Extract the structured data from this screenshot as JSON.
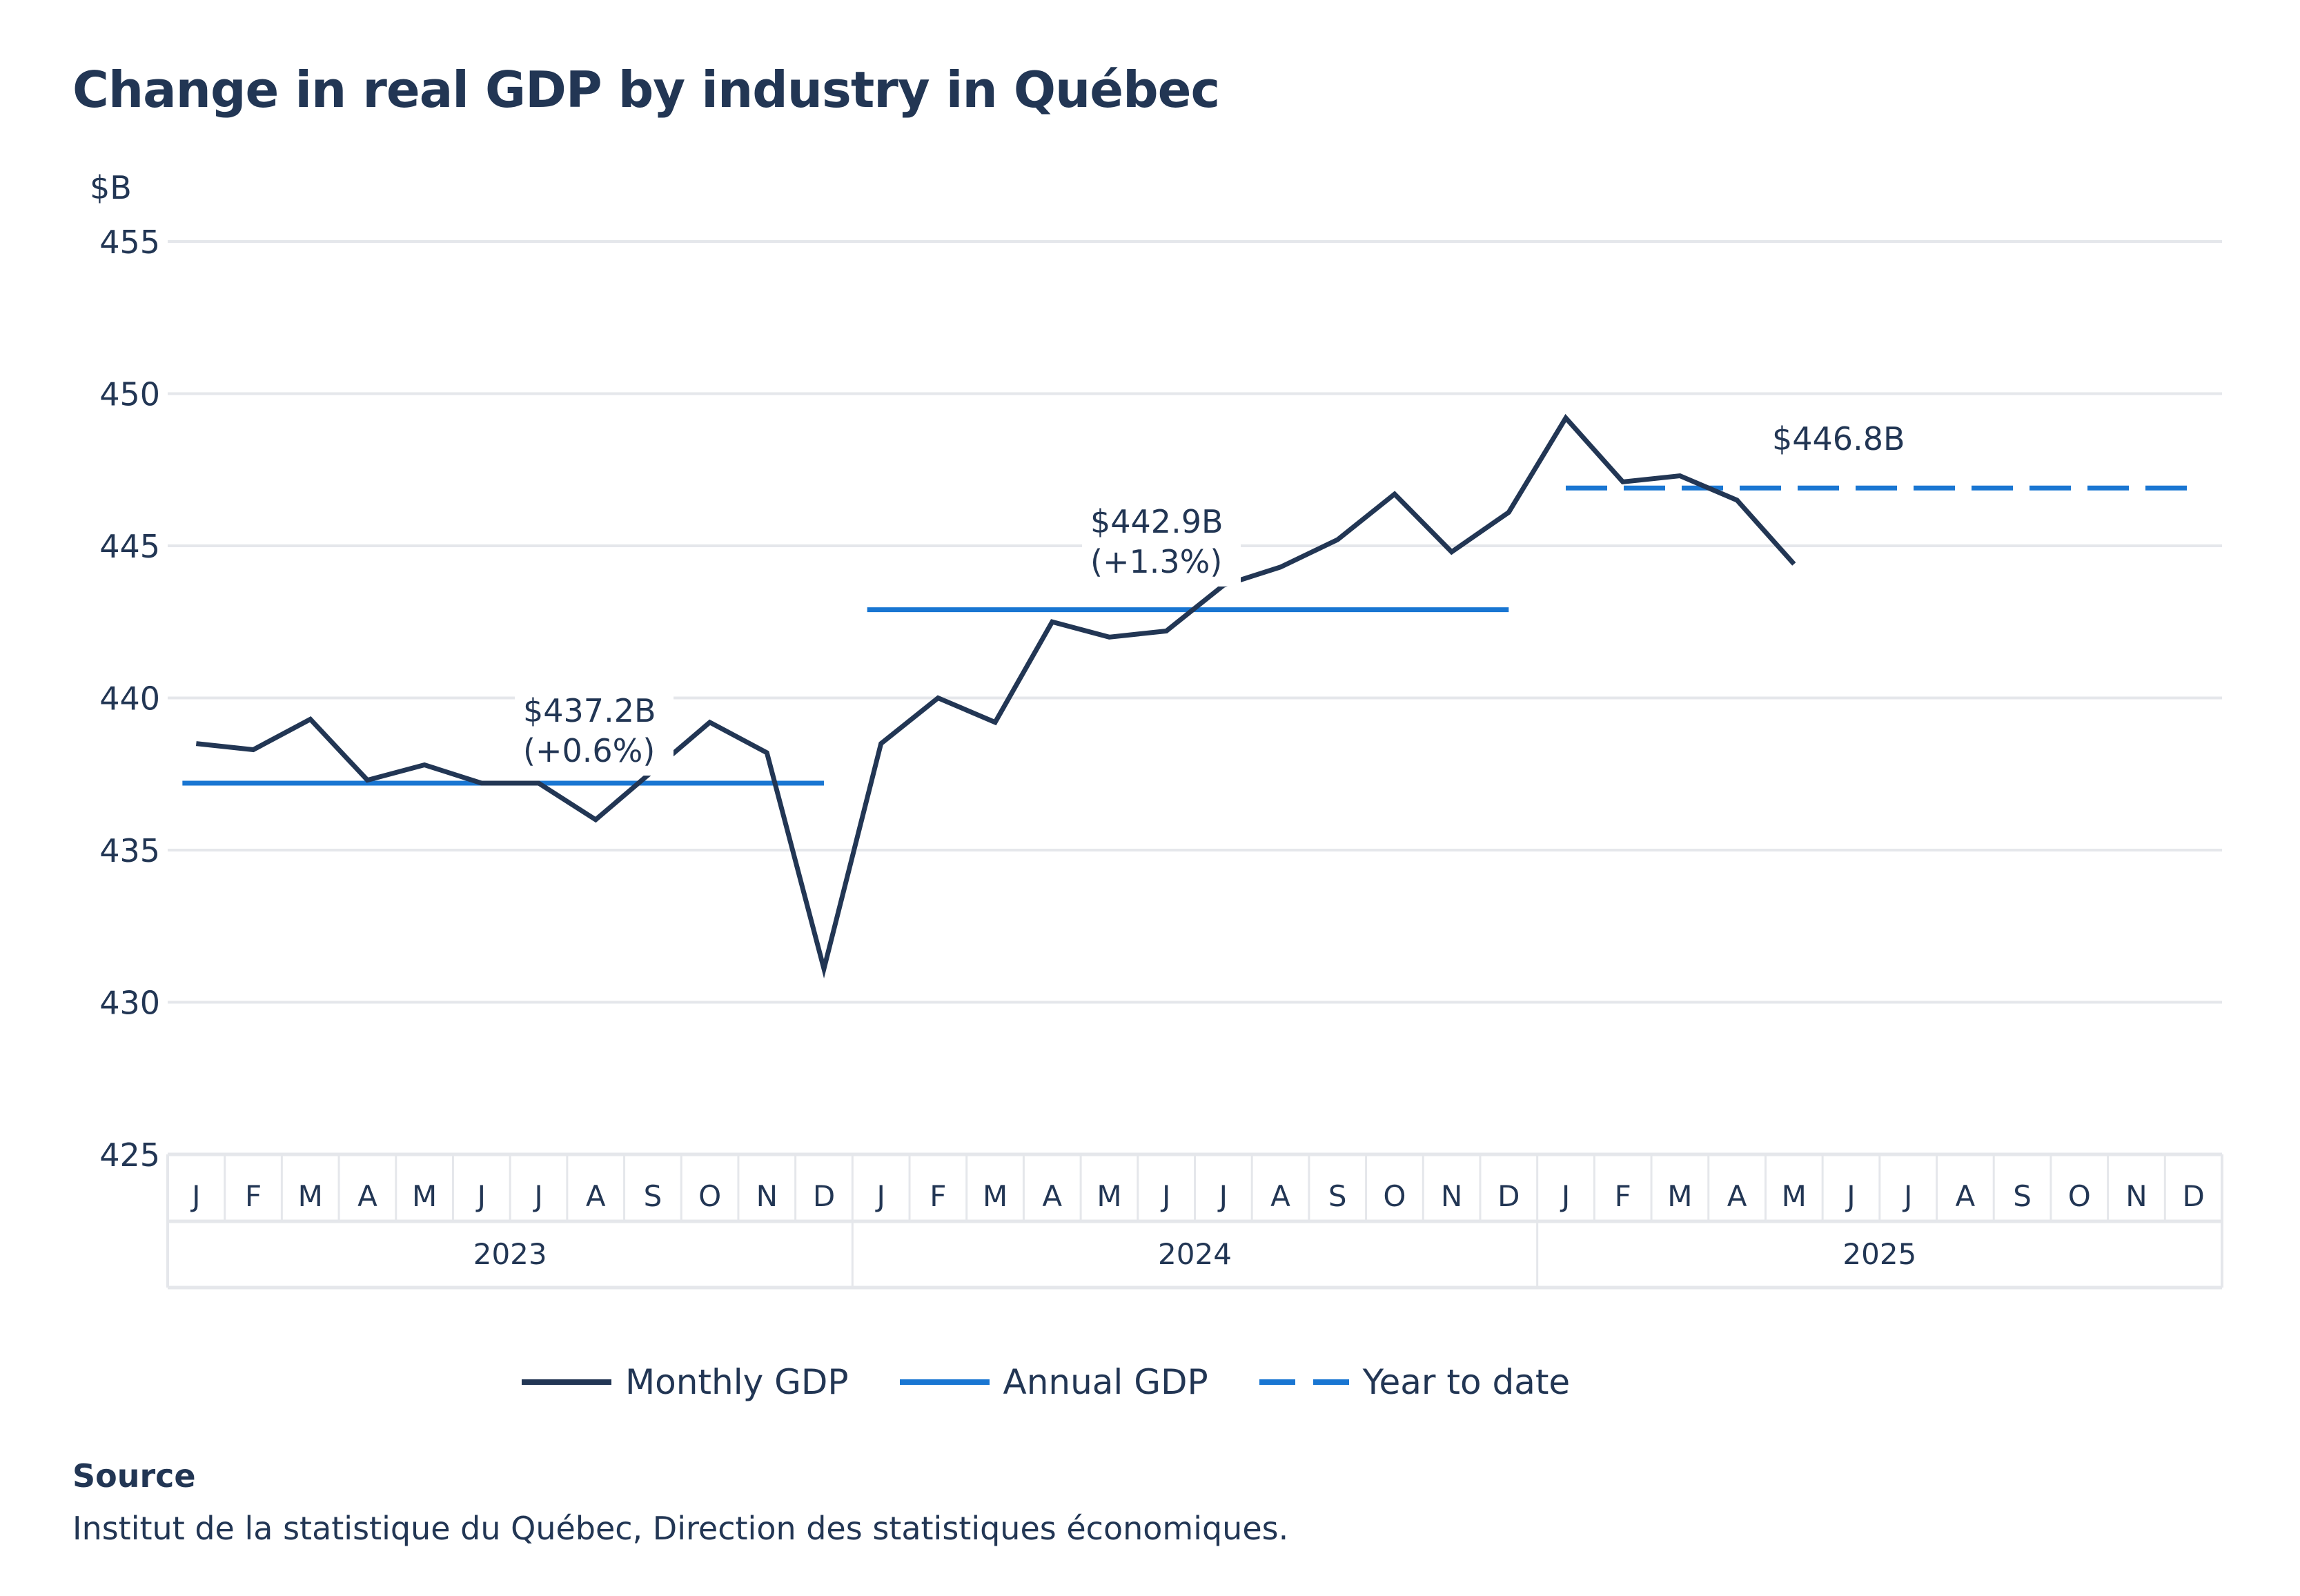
{
  "title": "Change in real GDP by industry in Québec",
  "source": {
    "heading": "Source",
    "text": "Institut de la statistique du Québec, Direction des statistiques économiques."
  },
  "colors": {
    "monthly": "#223654",
    "annual": "#1976D2",
    "ytd": "#1976D2",
    "grid": "#e5e7eb",
    "text": "#223654"
  },
  "legend": [
    {
      "name": "Monthly GDP",
      "style": "solid",
      "color_key": "monthly"
    },
    {
      "name": "Annual GDP",
      "style": "solid",
      "color_key": "annual"
    },
    {
      "name": "Year to date",
      "style": "dashed",
      "color_key": "ytd"
    }
  ],
  "chart_data": {
    "type": "line",
    "title": "Change in real GDP by industry in Québec",
    "ylabel": "$B",
    "xlabel": "",
    "ylim": [
      425,
      455
    ],
    "yticks": [
      425,
      430,
      435,
      440,
      445,
      450,
      455
    ],
    "grid": true,
    "legend_position": "bottom",
    "x_years": [
      "2023",
      "2024",
      "2025"
    ],
    "x_month_labels": [
      "J",
      "F",
      "M",
      "A",
      "M",
      "J",
      "J",
      "A",
      "S",
      "O",
      "N",
      "D"
    ],
    "series": [
      {
        "name": "Monthly GDP",
        "type": "line",
        "values": [
          438.5,
          438.3,
          439.3,
          437.3,
          437.8,
          437.2,
          437.2,
          436.0,
          437.6,
          439.2,
          438.2,
          431.1,
          438.5,
          440.0,
          439.2,
          442.5,
          442.0,
          442.2,
          443.7,
          444.3,
          445.2,
          446.7,
          444.8,
          446.1,
          449.2,
          447.1,
          447.3,
          446.5,
          444.4
        ]
      },
      {
        "name": "Annual GDP",
        "type": "segments",
        "segments": [
          {
            "year": "2023",
            "start_month": 0,
            "end_month": 11,
            "value": 437.2,
            "label_lines": [
              "$437.2B",
              "(+0.6%)"
            ]
          },
          {
            "year": "2024",
            "start_month": 12,
            "end_month": 23,
            "value": 442.9,
            "label_lines": [
              "$442.9B",
              "(+1.3%)"
            ]
          }
        ]
      },
      {
        "name": "Year to date",
        "type": "dashed-segment",
        "segments": [
          {
            "year": "2025",
            "start_month": 24,
            "end_month": 35,
            "value": 446.8,
            "label_lines": [
              "$446.8B"
            ]
          }
        ]
      }
    ]
  }
}
